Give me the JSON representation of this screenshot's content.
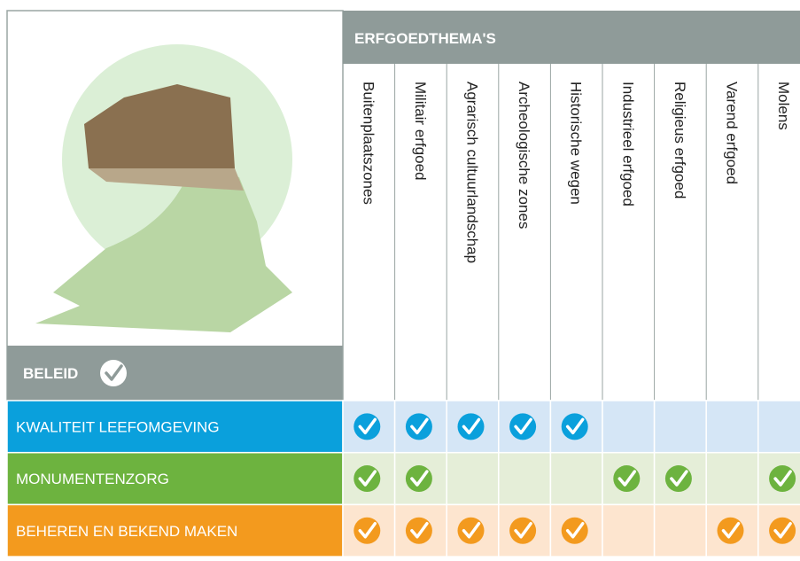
{
  "header": {
    "title": "ERFGOEDTHEMA'S"
  },
  "columns": [
    "Buitenplaatszones",
    "Militair erfgoed",
    "Agrarisch cultuurlandschap",
    "Archeologische zones",
    "Historische wegen",
    "Industrieel erfgoed",
    "Religieus erfgoed",
    "Varend erfgoed",
    "Molens"
  ],
  "policy_label": "BELEID",
  "rows": [
    {
      "label": "KWALITEIT LEEFOMGEVING",
      "color": "#0aa0dc",
      "tint": "#d5e6f6",
      "checks": [
        true,
        true,
        true,
        true,
        true,
        false,
        false,
        false,
        false
      ]
    },
    {
      "label": "MONUMENTENZORG",
      "color": "#6db33f",
      "tint": "#e5eed8",
      "checks": [
        true,
        true,
        false,
        false,
        false,
        true,
        true,
        false,
        true
      ]
    },
    {
      "label": "BEHEREN EN BEKEND MAKEN",
      "color": "#f39a1e",
      "tint": "#fde5cf",
      "checks": [
        true,
        true,
        true,
        true,
        true,
        false,
        false,
        true,
        true
      ]
    }
  ]
}
